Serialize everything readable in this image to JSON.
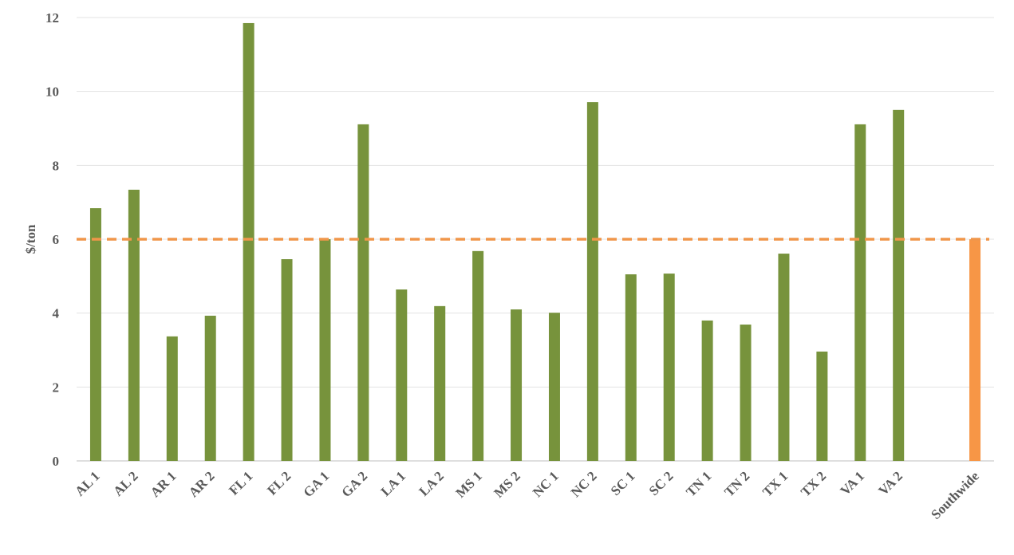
{
  "chart_data": {
    "type": "bar",
    "y_label": "$/ton",
    "categories": [
      "AL 1",
      "AL 2",
      "AR 1",
      "AR 2",
      "FL 1",
      "FL 2",
      "GA 1",
      "GA 2",
      "LA 1",
      "LA 2",
      "MS 1",
      "MS 2",
      "NC 1",
      "NC 2",
      "SC 1",
      "SC 2",
      "TN 1",
      "TN 2",
      "TX 1",
      "TX 2",
      "VA 1",
      "VA 2",
      null,
      "Southwide"
    ],
    "values": [
      6.84,
      7.34,
      3.37,
      3.93,
      11.85,
      5.46,
      6.0,
      9.11,
      4.64,
      4.19,
      5.68,
      4.1,
      4.01,
      9.71,
      5.05,
      5.07,
      3.8,
      3.69,
      5.61,
      2.96,
      9.11,
      9.5,
      null,
      6.0
    ],
    "colors": [
      "#77933c",
      "#77933c",
      "#77933c",
      "#77933c",
      "#77933c",
      "#77933c",
      "#77933c",
      "#77933c",
      "#77933c",
      "#77933c",
      "#77933c",
      "#77933c",
      "#77933c",
      "#77933c",
      "#77933c",
      "#77933c",
      "#77933c",
      "#77933c",
      "#77933c",
      "#77933c",
      "#77933c",
      "#77933c",
      null,
      "#f79646"
    ],
    "reference_line": {
      "value": 6,
      "color": "#f0964a",
      "style": "dashed"
    },
    "ylim": [
      0,
      12
    ],
    "yticks": [
      0,
      2,
      4,
      6,
      8,
      10,
      12
    ],
    "grid": true
  }
}
